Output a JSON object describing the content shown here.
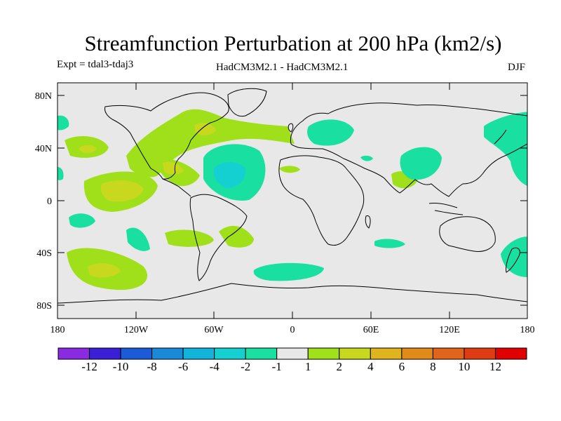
{
  "title": "Streamfunction Perturbation at 200 hPa (km2/s)",
  "experiment_label": "Expt = tdal3-tdaj3",
  "model_label": "HadCM3M2.1 - HadCM3M2.1",
  "season_label": "DJF",
  "lat_ticks": [
    "80N",
    "40N",
    "0",
    "40S",
    "80S"
  ],
  "lon_ticks": [
    "180",
    "120W",
    "60W",
    "0",
    "60E",
    "120E",
    "180"
  ],
  "colorbar": {
    "labels": [
      "-12",
      "-10",
      "-8",
      "-6",
      "-4",
      "-2",
      "-1",
      "1",
      "2",
      "4",
      "6",
      "8",
      "10",
      "12"
    ],
    "colors": [
      "#8a2be2",
      "#3a1fd6",
      "#1c5bd8",
      "#1a8ad8",
      "#12b4dc",
      "#14d0d0",
      "#19e0a0",
      "#e8e8e8",
      "#a0e01a",
      "#c8d81e",
      "#e0b41e",
      "#e08a1a",
      "#e0641a",
      "#e03c14",
      "#e00000"
    ]
  },
  "colors": {
    "ocean_background": "#e8e8e8",
    "pos_1_2": "#a0e01a",
    "pos_2_4": "#c8d81e",
    "neg_1_2": "#19e0a0",
    "neg_2_4": "#14d0d0"
  }
}
